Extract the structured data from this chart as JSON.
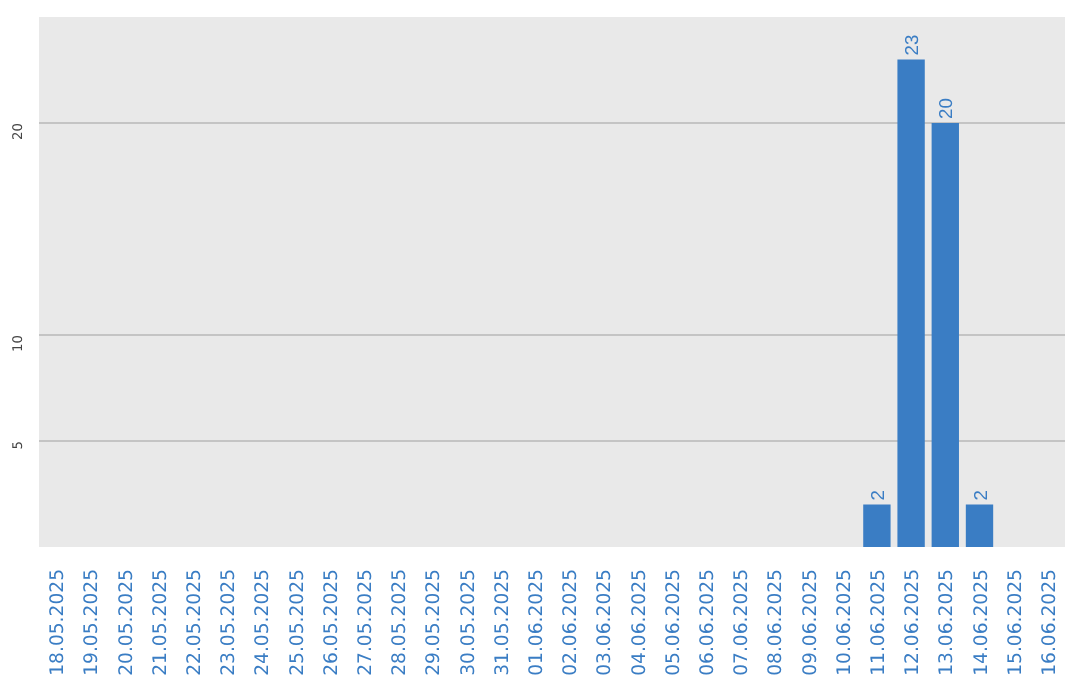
{
  "chart_data": {
    "type": "bar",
    "categories": [
      "18.05.2025",
      "19.05.2025",
      "20.05.2025",
      "21.05.2025",
      "22.05.2025",
      "23.05.2025",
      "24.05.2025",
      "25.05.2025",
      "26.05.2025",
      "27.05.2025",
      "28.05.2025",
      "29.05.2025",
      "30.05.2025",
      "31.05.2025",
      "01.06.2025",
      "02.06.2025",
      "03.06.2025",
      "04.06.2025",
      "05.06.2025",
      "06.06.2025",
      "07.06.2025",
      "08.06.2025",
      "09.06.2025",
      "10.06.2025",
      "11.06.2025",
      "12.06.2025",
      "13.06.2025",
      "14.06.2025",
      "15.06.2025",
      "16.06.2025"
    ],
    "values": [
      0,
      0,
      0,
      0,
      0,
      0,
      0,
      0,
      0,
      0,
      0,
      0,
      0,
      0,
      0,
      0,
      0,
      0,
      0,
      0,
      0,
      0,
      0,
      0,
      2,
      23,
      20,
      2,
      0,
      0
    ],
    "value_labels": [
      null,
      null,
      null,
      null,
      null,
      null,
      null,
      null,
      null,
      null,
      null,
      null,
      null,
      null,
      null,
      null,
      null,
      null,
      null,
      null,
      null,
      null,
      null,
      null,
      "2",
      "23",
      "20",
      "2",
      null,
      null
    ],
    "color": "#3a7dc4",
    "ylim": [
      0,
      25
    ],
    "yticks": [
      5,
      10,
      20
    ],
    "grid": "y"
  }
}
